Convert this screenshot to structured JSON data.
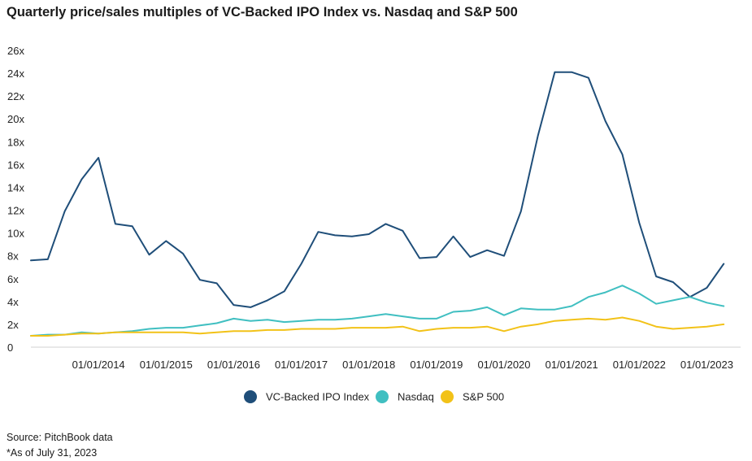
{
  "title": "Quarterly price/sales multiples of VC-Backed IPO Index vs. Nasdaq and S&P 500",
  "footnotes": {
    "source": "Source: PitchBook data",
    "note": "*As of July 31, 2023"
  },
  "chart_data": {
    "type": "line",
    "title": "Quarterly price/sales multiples of VC-Backed IPO Index vs. Nasdaq and S&P 500",
    "xlabel": "",
    "ylabel": "",
    "ylim": [
      0,
      26
    ],
    "y_ticks": [
      "0",
      "2x",
      "4x",
      "6x",
      "8x",
      "10x",
      "12x",
      "14x",
      "16x",
      "18x",
      "20x",
      "22x",
      "24x",
      "26x"
    ],
    "x_tick_labels": [
      "01/01/2014",
      "01/01/2015",
      "01/01/2016",
      "01/01/2017",
      "01/01/2018",
      "01/01/2019",
      "01/01/2020",
      "01/01/2021",
      "01/01/2022",
      "01/01/2023"
    ],
    "x": [
      "2013-01",
      "2013-04",
      "2013-07",
      "2013-10",
      "2014-01",
      "2014-04",
      "2014-07",
      "2014-10",
      "2015-01",
      "2015-04",
      "2015-07",
      "2015-10",
      "2016-01",
      "2016-04",
      "2016-07",
      "2016-10",
      "2017-01",
      "2017-04",
      "2017-07",
      "2017-10",
      "2018-01",
      "2018-04",
      "2018-07",
      "2018-10",
      "2019-01",
      "2019-04",
      "2019-07",
      "2019-10",
      "2020-01",
      "2020-04",
      "2020-07",
      "2020-10",
      "2021-01",
      "2021-04",
      "2021-07",
      "2021-10",
      "2022-01",
      "2022-04",
      "2022-07",
      "2022-10",
      "2023-01",
      "2023-04",
      "2023-07"
    ],
    "grid": false,
    "legend_position": "bottom",
    "series": [
      {
        "name": "VC-Backed IPO Index",
        "color": "#1f4e79",
        "values": [
          7.6,
          7.7,
          11.9,
          14.7,
          16.6,
          10.8,
          10.6,
          8.1,
          9.3,
          8.2,
          5.9,
          5.6,
          3.7,
          3.5,
          4.1,
          4.9,
          7.3,
          10.1,
          9.8,
          9.7,
          9.9,
          10.8,
          10.2,
          7.8,
          7.9,
          9.7,
          7.9,
          8.5,
          8.0,
          11.9,
          18.5,
          24.1,
          24.1,
          23.6,
          19.8,
          16.9,
          10.9,
          6.2,
          5.7,
          4.4,
          5.2,
          7.3,
          null
        ]
      },
      {
        "name": "Nasdaq",
        "color": "#40bfc1",
        "values": [
          1.0,
          1.1,
          1.1,
          1.3,
          1.2,
          1.3,
          1.4,
          1.6,
          1.7,
          1.7,
          1.9,
          2.1,
          2.5,
          2.3,
          2.4,
          2.2,
          2.3,
          2.4,
          2.4,
          2.5,
          2.7,
          2.9,
          2.7,
          2.5,
          2.5,
          3.1,
          3.2,
          3.5,
          2.8,
          3.4,
          3.3,
          3.3,
          3.6,
          4.4,
          4.8,
          5.4,
          4.7,
          3.8,
          4.1,
          4.4,
          3.9,
          3.6,
          null
        ]
      },
      {
        "name": "S&P 500",
        "color": "#f2c218",
        "values": [
          1.0,
          1.0,
          1.1,
          1.2,
          1.2,
          1.3,
          1.3,
          1.3,
          1.3,
          1.3,
          1.2,
          1.3,
          1.4,
          1.4,
          1.5,
          1.5,
          1.6,
          1.6,
          1.6,
          1.7,
          1.7,
          1.7,
          1.8,
          1.4,
          1.6,
          1.7,
          1.7,
          1.8,
          1.4,
          1.8,
          2.0,
          2.3,
          2.4,
          2.5,
          2.4,
          2.6,
          2.3,
          1.8,
          1.6,
          1.7,
          1.8,
          2.0,
          null
        ]
      }
    ]
  }
}
